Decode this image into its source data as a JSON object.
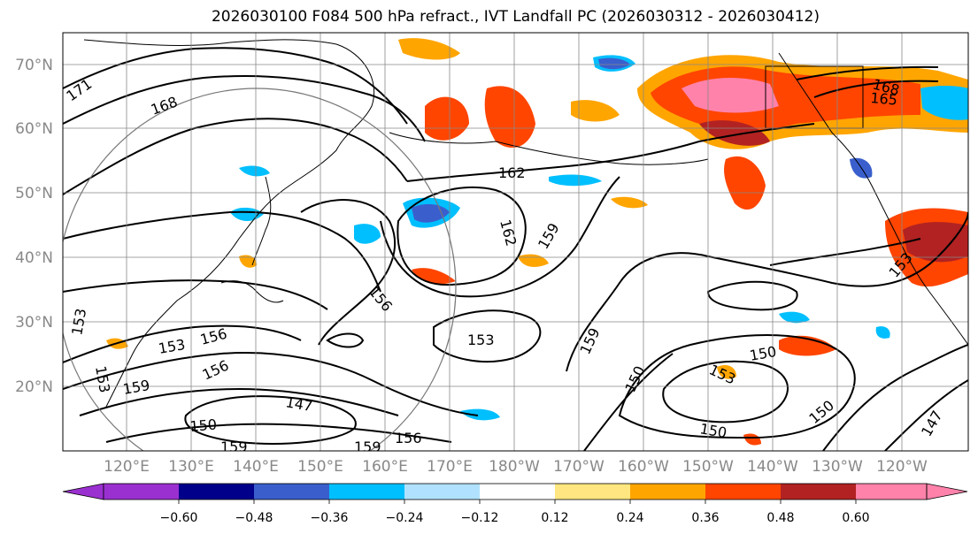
{
  "title": "2026030100 F084 500 hPa refract., IVT Landfall PC (2026030312 - 2026030412)",
  "lat_labels": [
    "70°N",
    "60°N",
    "50°N",
    "40°N",
    "30°N",
    "20°N"
  ],
  "lon_labels": [
    "120°E",
    "130°E",
    "140°E",
    "150°E",
    "160°E",
    "170°E",
    "180°W",
    "170°W",
    "160°W",
    "150°W",
    "140°W",
    "130°W",
    "120°W"
  ],
  "colorbar": {
    "ticks": [
      "−0.60",
      "−0.48",
      "−0.36",
      "−0.24",
      "−0.12",
      "0.12",
      "0.24",
      "0.36",
      "0.48",
      "0.60"
    ],
    "colors": [
      "#9b30d0",
      "#00008b",
      "#3a5fcd",
      "#00bfff",
      "#b0e2ff",
      "#ffffff",
      "#ffe680",
      "#ffa500",
      "#ff4500",
      "#b22222",
      "#ff82ab",
      "#ff82ab"
    ]
  },
  "contour_labels": [
    "171",
    "168",
    "168",
    "165",
    "162",
    "162",
    "159",
    "159",
    "159",
    "159",
    "159",
    "156",
    "156",
    "156",
    "156",
    "153",
    "153",
    "153",
    "153",
    "153",
    "153",
    "150",
    "150",
    "150",
    "150",
    "150",
    "147",
    "147"
  ]
}
